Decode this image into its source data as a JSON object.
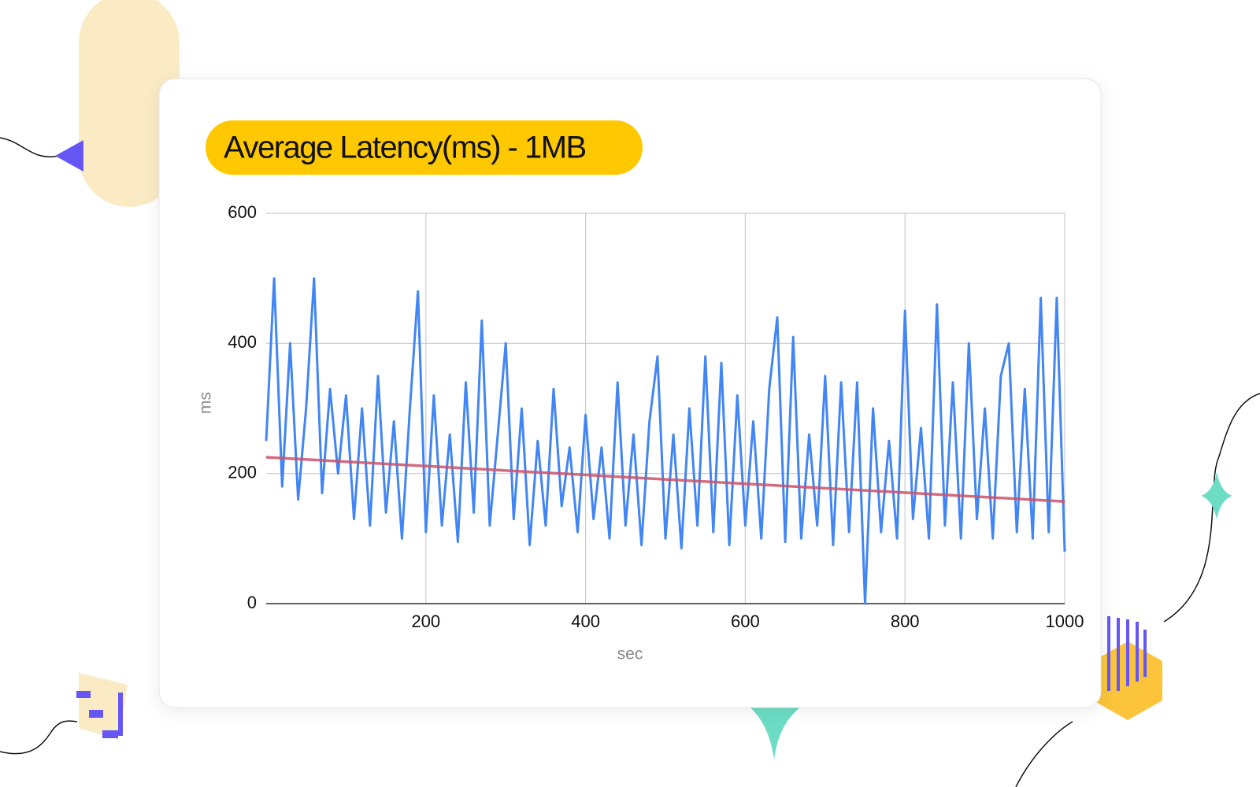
{
  "chart_data": {
    "type": "line",
    "title": "Average Latency(ms) - 1MB",
    "x_label": "sec",
    "y_label": "ms",
    "xlim": [
      0,
      1000
    ],
    "xticks": [
      200,
      400,
      600,
      800,
      1000
    ],
    "ylim": [
      0,
      600
    ],
    "yticks": [
      0,
      200,
      400,
      600
    ],
    "grid": true,
    "series": [
      {
        "color": "#4285f4",
        "x": [
          0,
          10,
          20,
          30,
          40,
          50,
          60,
          70,
          80,
          90,
          100,
          110,
          120,
          130,
          140,
          150,
          160,
          170,
          180,
          190,
          200,
          210,
          220,
          230,
          240,
          250,
          260,
          270,
          280,
          290,
          300,
          310,
          320,
          330,
          340,
          350,
          360,
          370,
          380,
          390,
          400,
          410,
          420,
          430,
          440,
          450,
          460,
          470,
          480,
          490,
          500,
          510,
          520,
          530,
          540,
          550,
          560,
          570,
          580,
          590,
          600,
          610,
          620,
          630,
          640,
          650,
          660,
          670,
          680,
          690,
          700,
          710,
          720,
          730,
          740,
          750,
          760,
          770,
          780,
          790,
          800,
          810,
          820,
          830,
          840,
          850,
          860,
          870,
          880,
          890,
          900,
          910,
          920,
          930,
          940,
          950,
          960,
          970,
          980,
          990,
          1000
        ],
        "values": [
          250,
          500,
          180,
          400,
          160,
          300,
          500,
          170,
          330,
          200,
          320,
          130,
          300,
          120,
          350,
          140,
          280,
          100,
          300,
          480,
          110,
          320,
          120,
          260,
          95,
          340,
          140,
          435,
          120,
          260,
          400,
          130,
          300,
          90,
          250,
          120,
          330,
          150,
          240,
          110,
          290,
          130,
          240,
          100,
          340,
          120,
          260,
          90,
          280,
          380,
          100,
          260,
          85,
          300,
          120,
          380,
          110,
          370,
          90,
          320,
          120,
          280,
          100,
          330,
          440,
          95,
          410,
          100,
          260,
          120,
          350,
          90,
          340,
          110,
          340,
          0,
          300,
          110,
          250,
          100,
          450,
          130,
          270,
          100,
          460,
          120,
          340,
          100,
          400,
          130,
          300,
          100,
          350,
          400,
          110,
          330,
          100,
          470,
          110,
          470,
          80
        ]
      },
      {
        "color": "#c9546a",
        "x": [
          0,
          1000
        ],
        "values": [
          225,
          157
        ]
      }
    ]
  }
}
